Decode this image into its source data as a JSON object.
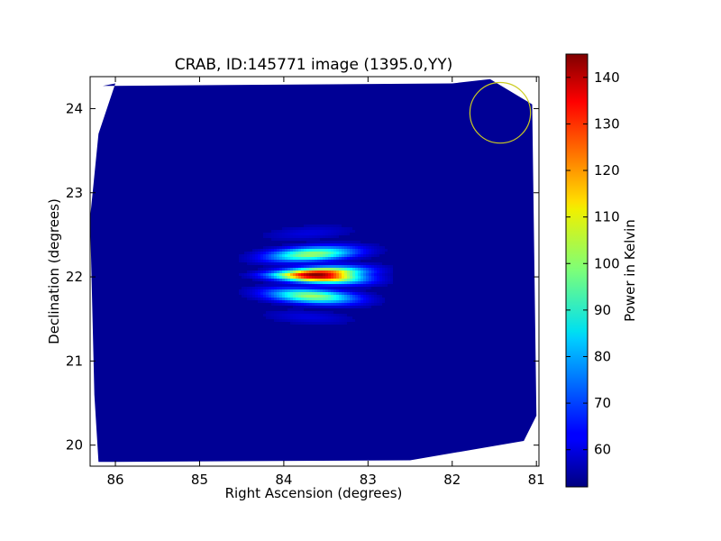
{
  "chart_data": {
    "type": "heatmap",
    "title": "CRAB, ID:145771 image (1395.0,YY)",
    "xlabel": "Right Ascension (degrees)",
    "ylabel": "Declination (degrees)",
    "xlim": [
      86.3,
      80.97
    ],
    "ylim": [
      19.75,
      24.38
    ],
    "x_ticks": [
      86,
      85,
      84,
      83,
      82,
      81
    ],
    "y_ticks": [
      20,
      21,
      22,
      23,
      24
    ],
    "colorbar": {
      "label": "Power in Kelvin",
      "range": [
        52,
        145
      ],
      "ticks": [
        60,
        70,
        80,
        90,
        100,
        110,
        120,
        130,
        140
      ],
      "colormap": "jet"
    },
    "background_value": 54,
    "source": {
      "ra": 83.63,
      "dec": 22.02,
      "peak_value": 145,
      "fringe_spacing_dec": 0.27,
      "ra_extent": 0.9,
      "dec_extent": 0.6
    },
    "beam_circle": {
      "ra": 81.43,
      "dec": 23.95,
      "radius_deg": 0.36,
      "color": "#cccc22"
    },
    "grid": false
  }
}
